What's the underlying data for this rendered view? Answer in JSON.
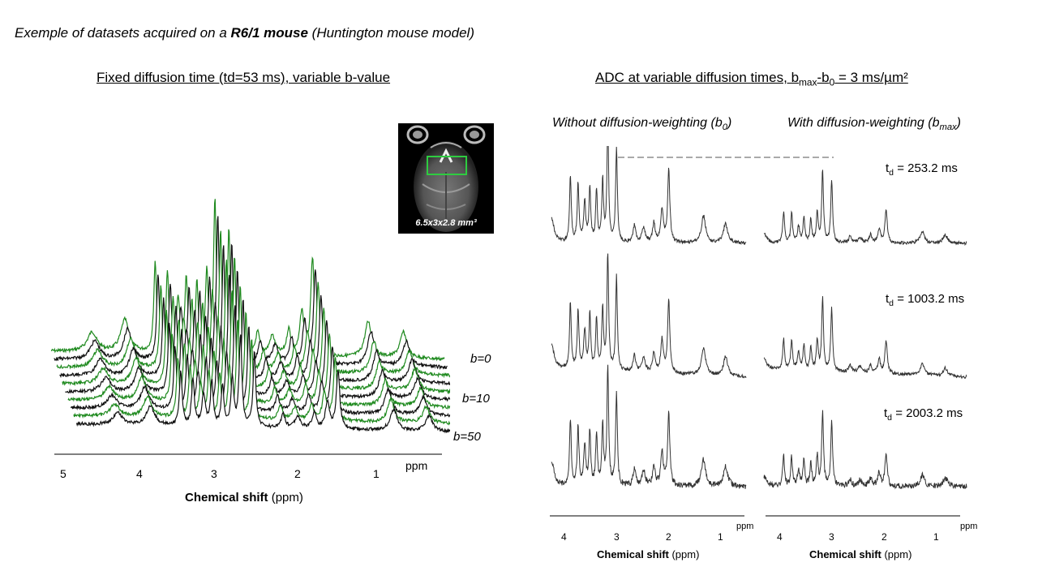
{
  "title": {
    "prefix": "Exemple of datasets acquired on a ",
    "bold": "R6/1 mouse",
    "suffix": " (Huntington mouse model)"
  },
  "left_section": {
    "heading": "Fixed diffusion time (td=53 ms), variable b-value",
    "b_labels": [
      "b=0",
      "b=10",
      "b=50"
    ],
    "x_ticks": [
      "5",
      "4",
      "3",
      "2",
      "1"
    ],
    "ppm_label": "ppm",
    "xlabel_bold": "Chemical shift",
    "xlabel_rest": " (ppm)",
    "inset_label": "6.5x3x2.8 mm³"
  },
  "right_section": {
    "heading_pre": "ADC at variable diffusion times, b",
    "heading_sub1": "max",
    "heading_mid": "-b",
    "heading_sub2": "0",
    "heading_post": " = 3 ms/µm²",
    "col1_pre": "Without diffusion-weighting (b",
    "col1_sub": "0",
    "col1_post": ")",
    "col2_pre": "With diffusion-weighting (b",
    "col2_sub": "max",
    "col2_post": ")",
    "td_prefix": "t",
    "td_sub": "d",
    "td_values": [
      "= 253.2 ms",
      "= 1003.2 ms",
      "= 2003.2 ms"
    ],
    "x_ticks": [
      "4",
      "3",
      "2",
      "1"
    ],
    "ppm_label": "ppm",
    "xlabel_bold": "Chemical shift",
    "xlabel_rest": " (ppm)"
  },
  "colors": {
    "black_trace": "#111111",
    "green_trace": "#1f8a1f",
    "gray_trace": "#333333",
    "roi_box": "#2ecc40"
  },
  "chart_data": [
    {
      "type": "line",
      "title": "Fixed diffusion time (td=53 ms), variable b-value",
      "xlabel": "Chemical shift (ppm)",
      "xlim": [
        5.2,
        0.4
      ],
      "x_reversed": true,
      "series_count": 10,
      "series_colors": [
        "black",
        "green",
        "black",
        "green",
        "black",
        "green",
        "black",
        "green",
        "black",
        "green"
      ],
      "labeled_series": [
        "b=0",
        "b=10",
        "b=50"
      ],
      "peaks_ppm": [
        0.9,
        1.33,
        2.01,
        2.14,
        2.3,
        2.5,
        2.68,
        3.03,
        3.2,
        3.3,
        3.42,
        3.55,
        3.65,
        3.78,
        3.93,
        4.3,
        4.7
      ],
      "relative_heights": [
        0.16,
        0.22,
        0.6,
        0.27,
        0.16,
        0.12,
        0.14,
        0.78,
        0.95,
        0.5,
        0.42,
        0.45,
        0.32,
        0.48,
        0.55,
        0.2,
        0.12
      ]
    },
    {
      "type": "line",
      "title": "ADC at variable diffusion times, bmax-b0 = 3 ms/µm²",
      "xlabel": "Chemical shift (ppm)",
      "xlim": [
        4.3,
        0.6
      ],
      "x_reversed": true,
      "panels": [
        {
          "td_ms": 253.2,
          "condition": "b0"
        },
        {
          "td_ms": 253.2,
          "condition": "bmax"
        },
        {
          "td_ms": 1003.2,
          "condition": "b0"
        },
        {
          "td_ms": 1003.2,
          "condition": "bmax"
        },
        {
          "td_ms": 2003.2,
          "condition": "b0"
        },
        {
          "td_ms": 2003.2,
          "condition": "bmax"
        }
      ]
    }
  ]
}
